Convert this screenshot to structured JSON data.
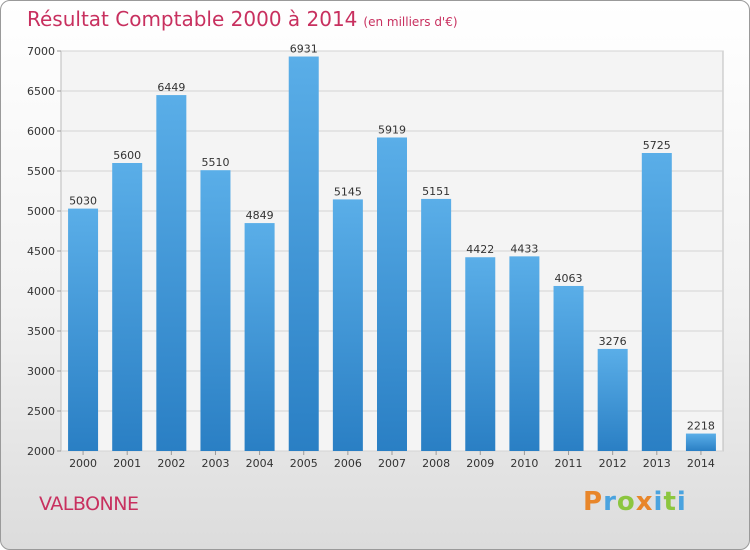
{
  "chart_data": {
    "type": "bar",
    "title": "Résultat Comptable 2000 à 2014",
    "subtitle": "(en milliers d'€)",
    "categories": [
      "2000",
      "2001",
      "2002",
      "2003",
      "2004",
      "2005",
      "2006",
      "2007",
      "2008",
      "2009",
      "2010",
      "2011",
      "2012",
      "2013",
      "2014"
    ],
    "values": [
      5030,
      5600,
      6449,
      5510,
      4849,
      6931,
      5145,
      5919,
      5151,
      4422,
      4433,
      4063,
      3276,
      5725,
      2218
    ],
    "ylim": [
      2000,
      7000
    ],
    "yticks": [
      2000,
      2500,
      3000,
      3500,
      4000,
      4500,
      5000,
      5500,
      6000,
      6500,
      7000
    ],
    "xlabel": "",
    "ylabel": "",
    "grid": true,
    "colors": {
      "bar_light": "#5aaee8",
      "bar_dark": "#2a7fc4",
      "title": "#c8305f",
      "grid": "#d4d4d4"
    }
  },
  "footer": {
    "place": "VALBONNE",
    "brand_letters": [
      {
        "ch": "P",
        "color": "#e8862a"
      },
      {
        "ch": "r",
        "color": "#4aa3df"
      },
      {
        "ch": "o",
        "color": "#8cc63f"
      },
      {
        "ch": "x",
        "color": "#e8862a"
      },
      {
        "ch": "i",
        "color": "#4aa3df"
      },
      {
        "ch": "t",
        "color": "#8cc63f"
      },
      {
        "ch": "i",
        "color": "#4aa3df"
      }
    ]
  }
}
